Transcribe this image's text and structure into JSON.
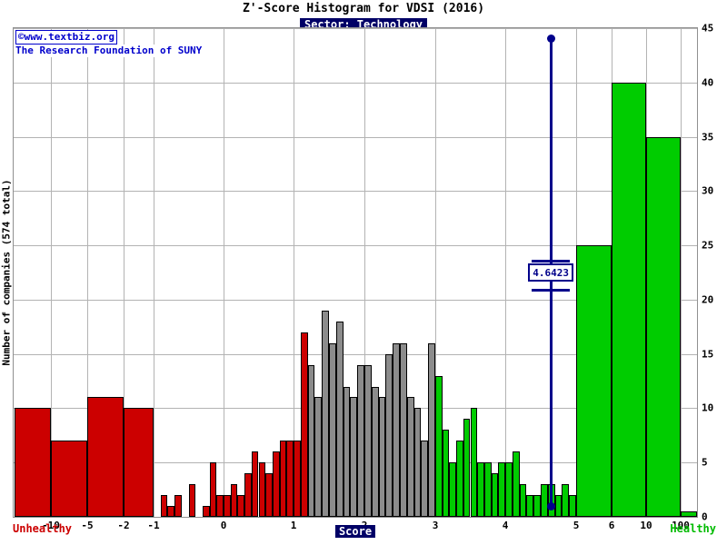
{
  "title": "Z'-Score Histogram for VDSI (2016)",
  "subtitle": "Sector: Technology",
  "credit": {
    "line1": "©www.textbiz.org",
    "line2": "The Research Foundation of SUNY"
  },
  "footer": {
    "unhealthy": "Unhealthy",
    "score": "Score",
    "healthy": "Healthy"
  },
  "chart_data": {
    "type": "bar",
    "title": "Z'-Score Histogram for VDSI (2016)",
    "subtitle": "Sector: Technology",
    "x_label": "Score",
    "y_label": "Number of companies (574 total)",
    "total_companies": 574,
    "x_ticks": [
      -10,
      -5,
      -2,
      -1,
      0,
      1,
      2,
      3,
      4,
      5,
      6,
      10,
      100
    ],
    "y_ticks": [
      0,
      5,
      10,
      15,
      20,
      25,
      30,
      35,
      40,
      45
    ],
    "ylim": [
      0,
      45
    ],
    "grid": true,
    "legend": "none",
    "colors": {
      "unhealthy": "#cc0000",
      "grey": "#8c8c8c",
      "healthy": "#00cc00",
      "marker": "#00008b",
      "grid": "#b3b3b3"
    },
    "marker": {
      "value": 4.6423,
      "label": "4.6423",
      "top": 44,
      "bottom": 1
    },
    "bars": [
      {
        "from": -15,
        "to": -10,
        "value": 10,
        "zone": "unhealthy"
      },
      {
        "from": -10,
        "to": -5,
        "value": 7,
        "zone": "unhealthy"
      },
      {
        "from": -5,
        "to": -2,
        "value": 11,
        "zone": "unhealthy"
      },
      {
        "from": -2,
        "to": -1,
        "value": 10,
        "zone": "unhealthy"
      },
      {
        "from": -0.9,
        "to": -0.8,
        "value": 2,
        "zone": "unhealthy"
      },
      {
        "from": -0.8,
        "to": -0.7,
        "value": 1,
        "zone": "unhealthy"
      },
      {
        "from": -0.7,
        "to": -0.6,
        "value": 2,
        "zone": "unhealthy"
      },
      {
        "from": -0.5,
        "to": -0.4,
        "value": 3,
        "zone": "unhealthy"
      },
      {
        "from": -0.3,
        "to": -0.2,
        "value": 1,
        "zone": "unhealthy"
      },
      {
        "from": -0.2,
        "to": -0.1,
        "value": 5,
        "zone": "unhealthy"
      },
      {
        "from": -0.1,
        "to": 0,
        "value": 2,
        "zone": "unhealthy"
      },
      {
        "from": 0,
        "to": 0.1,
        "value": 2,
        "zone": "unhealthy"
      },
      {
        "from": 0.1,
        "to": 0.2,
        "value": 3,
        "zone": "unhealthy"
      },
      {
        "from": 0.2,
        "to": 0.3,
        "value": 2,
        "zone": "unhealthy"
      },
      {
        "from": 0.3,
        "to": 0.4,
        "value": 4,
        "zone": "unhealthy"
      },
      {
        "from": 0.4,
        "to": 0.5,
        "value": 6,
        "zone": "unhealthy"
      },
      {
        "from": 0.5,
        "to": 0.6,
        "value": 5,
        "zone": "unhealthy"
      },
      {
        "from": 0.6,
        "to": 0.7,
        "value": 4,
        "zone": "unhealthy"
      },
      {
        "from": 0.7,
        "to": 0.8,
        "value": 6,
        "zone": "unhealthy"
      },
      {
        "from": 0.8,
        "to": 0.9,
        "value": 7,
        "zone": "unhealthy"
      },
      {
        "from": 0.9,
        "to": 1.0,
        "value": 7,
        "zone": "unhealthy"
      },
      {
        "from": 1.0,
        "to": 1.1,
        "value": 7,
        "zone": "unhealthy"
      },
      {
        "from": 1.1,
        "to": 1.2,
        "value": 17,
        "zone": "unhealthy"
      },
      {
        "from": 1.2,
        "to": 1.3,
        "value": 14,
        "zone": "grey"
      },
      {
        "from": 1.3,
        "to": 1.4,
        "value": 11,
        "zone": "grey"
      },
      {
        "from": 1.4,
        "to": 1.5,
        "value": 19,
        "zone": "grey"
      },
      {
        "from": 1.5,
        "to": 1.6,
        "value": 16,
        "zone": "grey"
      },
      {
        "from": 1.6,
        "to": 1.7,
        "value": 18,
        "zone": "grey"
      },
      {
        "from": 1.7,
        "to": 1.8,
        "value": 12,
        "zone": "grey"
      },
      {
        "from": 1.8,
        "to": 1.9,
        "value": 11,
        "zone": "grey"
      },
      {
        "from": 1.9,
        "to": 2.0,
        "value": 14,
        "zone": "grey"
      },
      {
        "from": 2.0,
        "to": 2.1,
        "value": 14,
        "zone": "grey"
      },
      {
        "from": 2.1,
        "to": 2.2,
        "value": 12,
        "zone": "grey"
      },
      {
        "from": 2.2,
        "to": 2.3,
        "value": 11,
        "zone": "grey"
      },
      {
        "from": 2.3,
        "to": 2.4,
        "value": 15,
        "zone": "grey"
      },
      {
        "from": 2.4,
        "to": 2.5,
        "value": 16,
        "zone": "grey"
      },
      {
        "from": 2.5,
        "to": 2.6,
        "value": 16,
        "zone": "grey"
      },
      {
        "from": 2.6,
        "to": 2.7,
        "value": 11,
        "zone": "grey"
      },
      {
        "from": 2.7,
        "to": 2.8,
        "value": 10,
        "zone": "grey"
      },
      {
        "from": 2.8,
        "to": 2.9,
        "value": 7,
        "zone": "grey"
      },
      {
        "from": 2.9,
        "to": 3.0,
        "value": 16,
        "zone": "grey"
      },
      {
        "from": 3.0,
        "to": 3.1,
        "value": 13,
        "zone": "healthy"
      },
      {
        "from": 3.1,
        "to": 3.2,
        "value": 8,
        "zone": "healthy"
      },
      {
        "from": 3.2,
        "to": 3.3,
        "value": 5,
        "zone": "healthy"
      },
      {
        "from": 3.3,
        "to": 3.4,
        "value": 7,
        "zone": "healthy"
      },
      {
        "from": 3.4,
        "to": 3.5,
        "value": 9,
        "zone": "healthy"
      },
      {
        "from": 3.5,
        "to": 3.6,
        "value": 10,
        "zone": "healthy"
      },
      {
        "from": 3.6,
        "to": 3.7,
        "value": 5,
        "zone": "healthy"
      },
      {
        "from": 3.7,
        "to": 3.8,
        "value": 5,
        "zone": "healthy"
      },
      {
        "from": 3.8,
        "to": 3.9,
        "value": 4,
        "zone": "healthy"
      },
      {
        "from": 3.9,
        "to": 4.0,
        "value": 5,
        "zone": "healthy"
      },
      {
        "from": 4.0,
        "to": 4.1,
        "value": 5,
        "zone": "healthy"
      },
      {
        "from": 4.1,
        "to": 4.2,
        "value": 6,
        "zone": "healthy"
      },
      {
        "from": 4.2,
        "to": 4.3,
        "value": 3,
        "zone": "healthy"
      },
      {
        "from": 4.3,
        "to": 4.4,
        "value": 2,
        "zone": "healthy"
      },
      {
        "from": 4.4,
        "to": 4.5,
        "value": 2,
        "zone": "healthy"
      },
      {
        "from": 4.5,
        "to": 4.6,
        "value": 3,
        "zone": "healthy"
      },
      {
        "from": 4.6,
        "to": 4.7,
        "value": 3,
        "zone": "healthy"
      },
      {
        "from": 4.7,
        "to": 4.8,
        "value": 2,
        "zone": "healthy"
      },
      {
        "from": 4.8,
        "to": 4.9,
        "value": 3,
        "zone": "healthy"
      },
      {
        "from": 4.9,
        "to": 5.0,
        "value": 2,
        "zone": "healthy"
      },
      {
        "from": 5,
        "to": 6,
        "value": 25,
        "zone": "healthy"
      },
      {
        "from": 6,
        "to": 10,
        "value": 40,
        "zone": "healthy"
      },
      {
        "from": 10,
        "to": 100,
        "value": 35,
        "zone": "healthy"
      },
      {
        "from": 100,
        "to": 1000,
        "value": 0.5,
        "zone": "healthy"
      }
    ]
  }
}
